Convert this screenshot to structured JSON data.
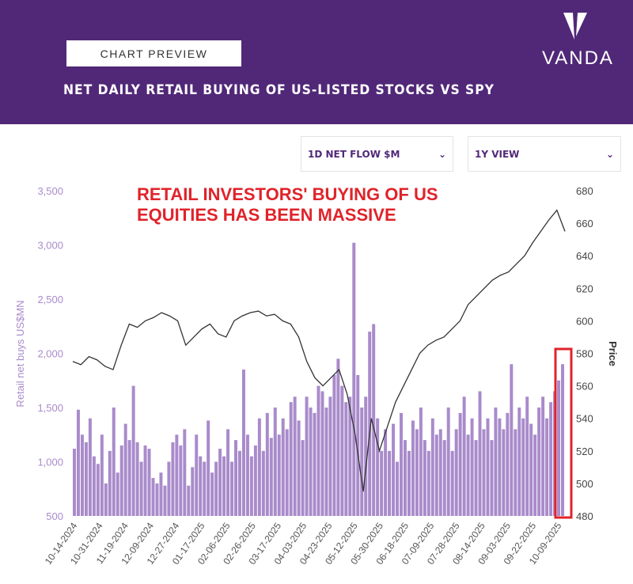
{
  "header": {
    "preview_label": "CHART PREVIEW",
    "logo_text": "VANDA",
    "title": "NET DAILY RETAIL BUYING OF US-LISTED STOCKS VS SPY"
  },
  "controls": {
    "metric": "1D NET FLOW $M",
    "view": "1Y VIEW"
  },
  "annotation": "RETAIL INVESTORS' BUYING OF US EQUITIES HAS BEEN MASSIVE",
  "colors": {
    "header": "#512878",
    "bars": "#a98bcb",
    "line": "#333333",
    "annotation": "#e0232a",
    "left_axis": "#a98bcb"
  },
  "chart_data": {
    "type": "bar+line",
    "ylabel": "Retail net buys US$MN",
    "y2label": "Price",
    "ylim": [
      500,
      3500
    ],
    "y2lim": [
      480,
      680
    ],
    "yticks": [
      "500",
      "1,000",
      "1,500",
      "2,000",
      "2,500",
      "3,000",
      "3,500"
    ],
    "y2ticks": [
      "480",
      "500",
      "520",
      "540",
      "560",
      "580",
      "600",
      "620",
      "640",
      "660",
      "680"
    ],
    "xticks": [
      "10-14-2024",
      "10-31-2024",
      "11-19-2024",
      "12-09-2024",
      "12-27-2024",
      "01-17-2025",
      "02-06-2025",
      "02-26-2025",
      "03-17-2025",
      "04-03-2025",
      "04-23-2025",
      "05-12-2025",
      "05-30-2025",
      "06-18-2025",
      "07-09-2025",
      "07-28-2025",
      "08-14-2025",
      "09-03-2025",
      "09-22-2025",
      "10-09-2025"
    ],
    "bars": [
      1120,
      1480,
      1250,
      1180,
      1400,
      1050,
      980,
      1250,
      800,
      1100,
      1500,
      900,
      1150,
      1350,
      1200,
      1700,
      1180,
      1000,
      1150,
      1120,
      850,
      800,
      900,
      780,
      1000,
      1180,
      1250,
      1150,
      1300,
      780,
      950,
      1250,
      1050,
      1000,
      1380,
      900,
      1000,
      1120,
      1050,
      1300,
      1000,
      1200,
      1100,
      1850,
      1250,
      1050,
      1150,
      1400,
      1100,
      1450,
      1220,
      1500,
      1250,
      1400,
      1300,
      1550,
      1600,
      1380,
      1200,
      1600,
      1500,
      1450,
      1700,
      1650,
      1500,
      1600,
      1800,
      1950,
      1700,
      1550,
      1600,
      3020,
      1800,
      1500,
      1600,
      2200,
      2270,
      1400,
      1100,
      1300,
      1100,
      1350,
      1000,
      1450,
      1200,
      1100,
      1380,
      1300,
      1500,
      1200,
      1100,
      1400,
      1250,
      1300,
      1200,
      1500,
      1100,
      1300,
      1450,
      1600,
      1250,
      1400,
      1200,
      1650,
      1300,
      1400,
      1200,
      1500,
      1400,
      1300,
      1450,
      1900,
      1300,
      1500,
      1400,
      1600,
      1350,
      1250,
      1500,
      1600,
      1400,
      1550,
      1650,
      1750,
      1900
    ],
    "spy": [
      575,
      573,
      578,
      576,
      572,
      570,
      585,
      598,
      596,
      600,
      602,
      605,
      603,
      600,
      585,
      590,
      595,
      598,
      592,
      590,
      600,
      603,
      605,
      606,
      603,
      604,
      600,
      598,
      590,
      575,
      565,
      560,
      565,
      570,
      555,
      530,
      495,
      540,
      520,
      535,
      550,
      560,
      570,
      580,
      585,
      588,
      590,
      595,
      600,
      610,
      615,
      620,
      625,
      628,
      630,
      635,
      640,
      648,
      655,
      662,
      668,
      655
    ],
    "highlight": "last trading days"
  }
}
